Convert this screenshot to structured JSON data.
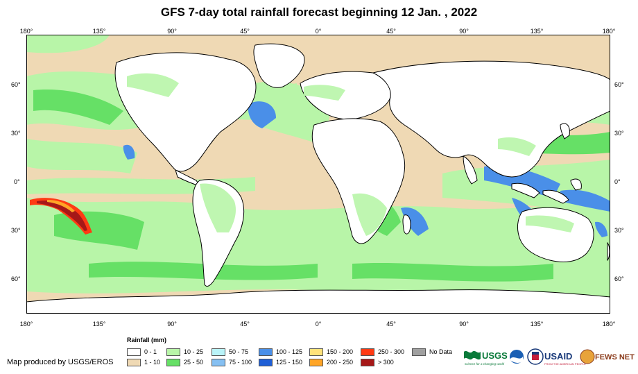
{
  "title": "GFS 7-day total rainfall forecast beginning 12 Jan. , 2022",
  "axes": {
    "top_labels": [
      "180°",
      "135°",
      "90°",
      "45°",
      "0°",
      "45°",
      "90°",
      "135°",
      "180°"
    ],
    "bottom_labels": [
      "180°",
      "135°",
      "90°",
      "45°",
      "0°",
      "45°",
      "90°",
      "135°",
      "180°"
    ],
    "left_labels": [
      "60°",
      "30°",
      "0°",
      "30°",
      "60°"
    ],
    "right_labels": [
      "60°",
      "30°",
      "0°",
      "30°",
      "60°"
    ]
  },
  "legend": {
    "title": "Rainfall (mm)",
    "items": [
      {
        "label": "0 - 1",
        "color": "#ffffff"
      },
      {
        "label": "1 - 10",
        "color": "#efd9b4"
      },
      {
        "label": "10 - 25",
        "color": "#b8f5a8"
      },
      {
        "label": "25 - 50",
        "color": "#66e066"
      },
      {
        "label": "50 - 75",
        "color": "#b9f3f8"
      },
      {
        "label": "75 - 100",
        "color": "#86c0f2"
      },
      {
        "label": "100 - 125",
        "color": "#4a8fe8"
      },
      {
        "label": "125 - 150",
        "color": "#1f5fd6"
      },
      {
        "label": "150 - 200",
        "color": "#ffe27a"
      },
      {
        "label": "200 - 250",
        "color": "#ffa526"
      },
      {
        "label": "250 - 300",
        "color": "#ff3a14"
      },
      {
        "label": "> 300",
        "color": "#a61818"
      },
      {
        "label": "No Data",
        "color": "#a0a0a0"
      }
    ]
  },
  "credit": "Map produced by USGS/EROS",
  "logos": {
    "usgs": "USGS",
    "usgs_tagline": "science for a changing world",
    "usaid": "USAID",
    "usaid_tagline": "FROM THE AMERICAN PEOPLE",
    "fews": "FEWS NET"
  },
  "colors": {
    "ocean_dry": "#efd9b4",
    "land_dry": "#ffffff",
    "light_rain": "#b8f5a8",
    "moderate_rain": "#66e066",
    "heavy_rain": "#4a8fe8",
    "extreme_rain": "#a61818"
  }
}
